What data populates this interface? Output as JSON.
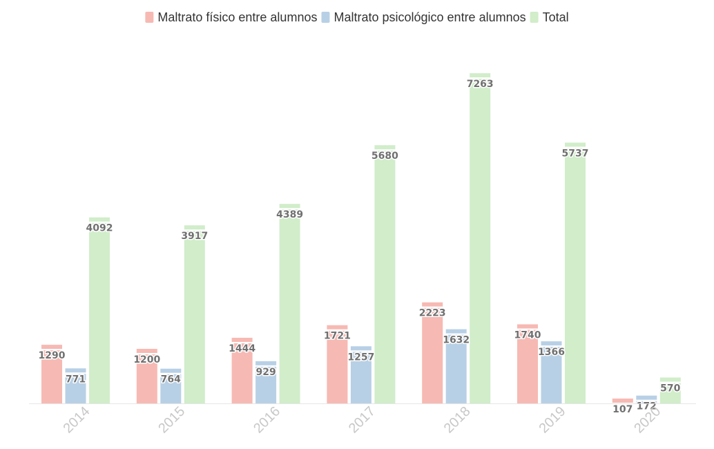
{
  "chart_data": {
    "type": "bar",
    "title": "",
    "xlabel": "",
    "ylabel": "",
    "categories": [
      "2014",
      "2015",
      "2016",
      "2017",
      "2018",
      "2019",
      "2020"
    ],
    "series": [
      {
        "name": "Maltrato físico entre alumnos",
        "color": "#f7b9b3",
        "values": [
          1290,
          1200,
          1444,
          1721,
          2223,
          1740,
          107
        ]
      },
      {
        "name": "Maltrato psicológico entre alumnos",
        "color": "#b8d0e6",
        "values": [
          771,
          764,
          929,
          1257,
          1632,
          1366,
          172
        ]
      },
      {
        "name": "Total",
        "color": "#d1edca",
        "values": [
          4092,
          3917,
          4389,
          5680,
          7263,
          5737,
          570
        ]
      }
    ],
    "ylim": [
      0,
      7500
    ],
    "grid": false,
    "data_labels": true,
    "legend_position": "top-center"
  }
}
